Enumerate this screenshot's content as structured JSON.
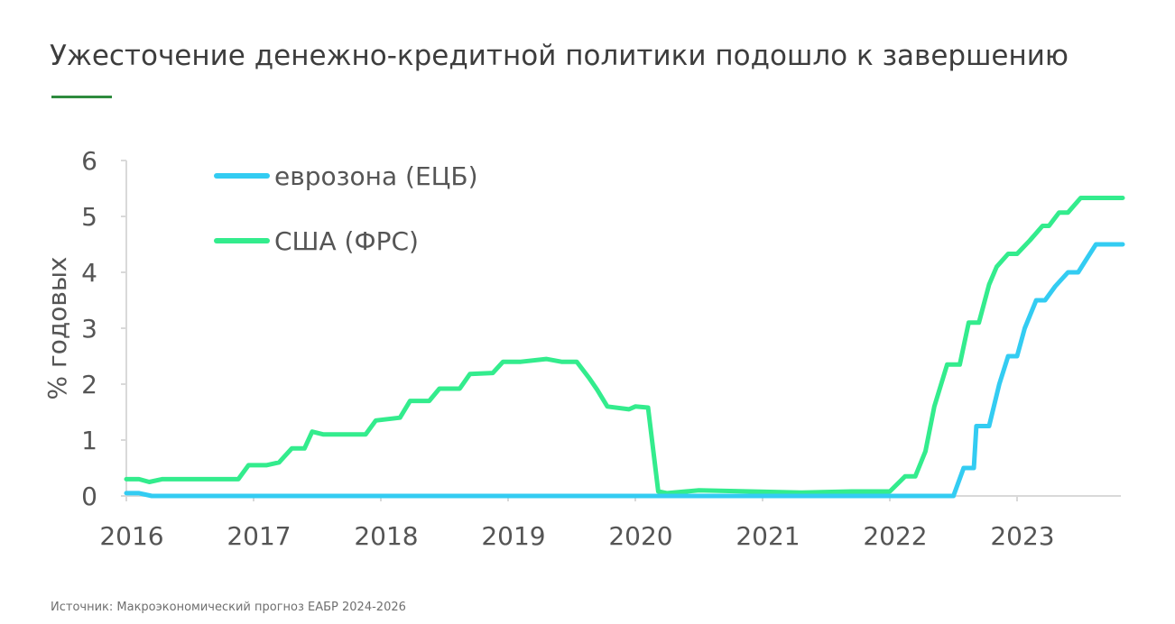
{
  "title": "Ужесточение денежно-кредитной политики подошло к завершению",
  "source": "Источник: Макроэкономический прогноз ЕАБР 2024-2026",
  "colors": {
    "accent": "#2e8b3e",
    "ecb": "#33ccf2",
    "fed": "#33ec8d",
    "axis": "#d9d9d9"
  },
  "chart_data": {
    "type": "line",
    "title": "",
    "xlabel": "",
    "ylabel": "% годовых",
    "xlim": [
      2016.0,
      2023.83
    ],
    "ylim": [
      0,
      6
    ],
    "x_ticks": [
      "2016",
      "2017",
      "2018",
      "2019",
      "2020",
      "2021",
      "2022",
      "2023"
    ],
    "y_ticks": [
      "0",
      "1",
      "2",
      "3",
      "4",
      "5",
      "6"
    ],
    "legend_position": "top-left",
    "grid": false,
    "series": [
      {
        "name": "еврозона (ЕЦБ)",
        "color": "#33ccf2",
        "x": [
          2016.0,
          2016.1,
          2016.2,
          2022.5,
          2022.58,
          2022.66,
          2022.68,
          2022.76,
          2022.78,
          2022.86,
          2022.93,
          2023.0,
          2023.06,
          2023.15,
          2023.22,
          2023.3,
          2023.4,
          2023.48,
          2023.55,
          2023.62,
          2023.7,
          2023.76,
          2023.83
        ],
        "y": [
          0.05,
          0.05,
          0.0,
          0.0,
          0.5,
          0.5,
          1.25,
          1.25,
          1.25,
          2.0,
          2.5,
          2.5,
          3.0,
          3.5,
          3.5,
          3.75,
          4.0,
          4.0,
          4.25,
          4.5,
          4.5,
          4.5,
          4.5
        ]
      },
      {
        "name": "США (ФРС)",
        "color": "#33ec8d",
        "x": [
          2016.0,
          2016.1,
          2016.18,
          2016.28,
          2016.45,
          2016.7,
          2016.88,
          2016.96,
          2017.1,
          2017.2,
          2017.3,
          2017.4,
          2017.46,
          2017.55,
          2017.75,
          2017.88,
          2017.96,
          2018.15,
          2018.23,
          2018.38,
          2018.46,
          2018.62,
          2018.7,
          2018.88,
          2018.96,
          2019.1,
          2019.3,
          2019.42,
          2019.54,
          2019.64,
          2019.7,
          2019.78,
          2019.95,
          2020.0,
          2020.1,
          2020.18,
          2020.25,
          2020.5,
          2020.9,
          2021.3,
          2021.7,
          2022.0,
          2022.12,
          2022.2,
          2022.28,
          2022.35,
          2022.45,
          2022.55,
          2022.62,
          2022.7,
          2022.78,
          2022.84,
          2022.93,
          2023.0,
          2023.1,
          2023.2,
          2023.25,
          2023.33,
          2023.4,
          2023.5,
          2023.83
        ],
        "y": [
          0.3,
          0.3,
          0.25,
          0.3,
          0.3,
          0.3,
          0.3,
          0.55,
          0.55,
          0.6,
          0.85,
          0.85,
          1.15,
          1.1,
          1.1,
          1.1,
          1.35,
          1.4,
          1.7,
          1.7,
          1.92,
          1.92,
          2.18,
          2.2,
          2.4,
          2.4,
          2.45,
          2.4,
          2.4,
          2.1,
          1.9,
          1.6,
          1.55,
          1.6,
          1.58,
          0.08,
          0.05,
          0.1,
          0.08,
          0.06,
          0.08,
          0.08,
          0.35,
          0.35,
          0.8,
          1.6,
          2.35,
          2.35,
          3.1,
          3.1,
          3.78,
          4.1,
          4.33,
          4.33,
          4.57,
          4.83,
          4.83,
          5.07,
          5.07,
          5.33,
          5.33
        ]
      }
    ]
  }
}
